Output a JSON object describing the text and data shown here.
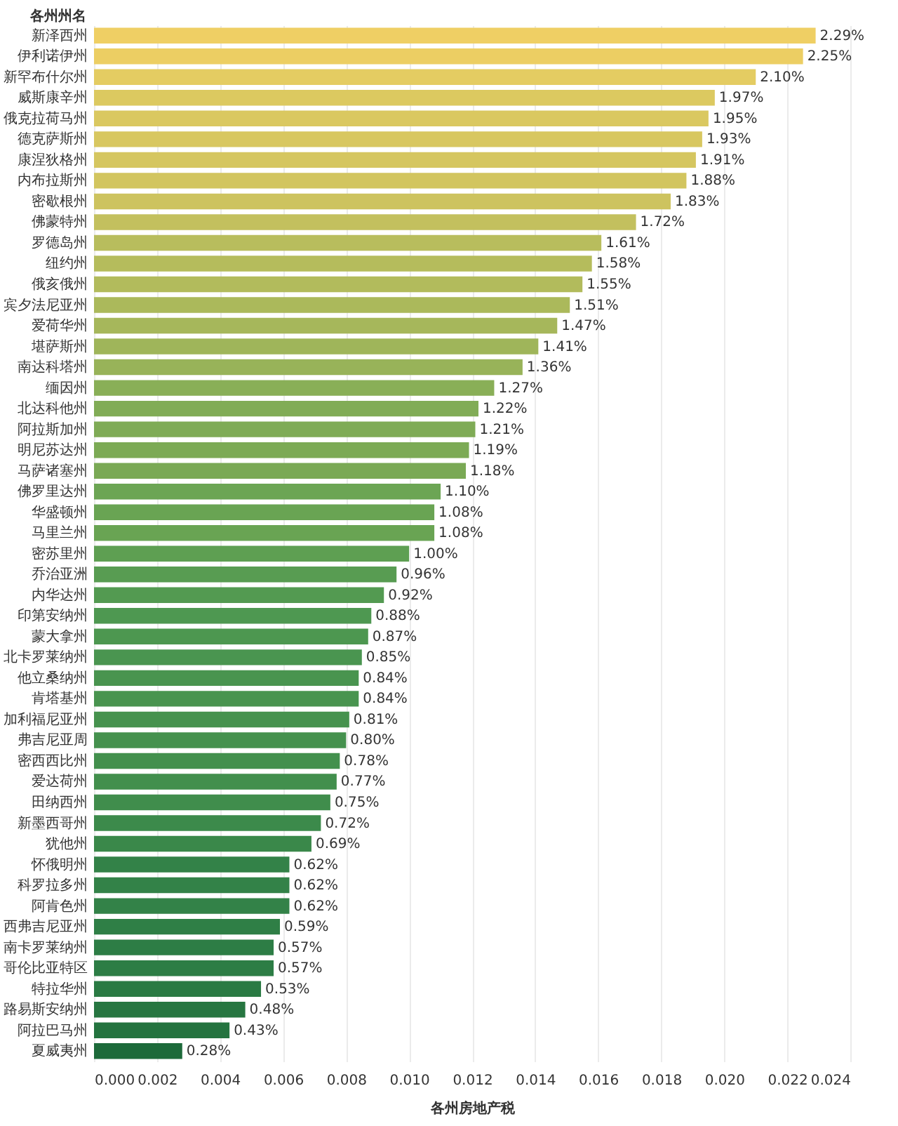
{
  "chart_data": {
    "type": "bar",
    "orientation": "horizontal",
    "xlabel": "各州房地产税",
    "ylabel": "各州州名",
    "categories": [
      "新泽西州",
      "伊利诺伊州",
      "新罕布什尔州",
      "威斯康辛州",
      "俄克拉荷马州",
      "德克萨斯州",
      "康涅狄格州",
      "内布拉斯州",
      "密歇根州",
      "佛蒙特州",
      "罗德岛州",
      "纽约州",
      "俄亥俄州",
      "宾夕法尼亚州",
      "爱荷华州",
      "堪萨斯州",
      "南达科塔州",
      "缅因州",
      "北达科他州",
      "阿拉斯加州",
      "明尼苏达州",
      "马萨诸塞州",
      "佛罗里达州",
      "华盛顿州",
      "马里兰州",
      "密苏里州",
      "乔治亚洲",
      "内华达州",
      "印第安纳州",
      "蒙大拿州",
      "北卡罗莱纳州",
      "他立桑纳州",
      "肯塔基州",
      "加利福尼亚州",
      "弗吉尼亚周",
      "密西西比州",
      "爱达荷州",
      "田纳西州",
      "新墨西哥州",
      "犹他州",
      "怀俄明州",
      "科罗拉多州",
      "阿肯色州",
      "西弗吉尼亚州",
      "南卡罗莱纳州",
      "哥伦比亚特区",
      "特拉华州",
      "路易斯安纳州",
      "阿拉巴马州",
      "夏威夷州"
    ],
    "values": [
      0.0229,
      0.0225,
      0.021,
      0.0197,
      0.0195,
      0.0193,
      0.0191,
      0.0188,
      0.0183,
      0.0172,
      0.0161,
      0.0158,
      0.0155,
      0.0151,
      0.0147,
      0.0141,
      0.0136,
      0.0127,
      0.0122,
      0.0121,
      0.0119,
      0.0118,
      0.011,
      0.0108,
      0.0108,
      0.01,
      0.0096,
      0.0092,
      0.0088,
      0.0087,
      0.0085,
      0.0084,
      0.0084,
      0.0081,
      0.008,
      0.0078,
      0.0077,
      0.0075,
      0.0072,
      0.0069,
      0.0062,
      0.0062,
      0.0062,
      0.0059,
      0.0057,
      0.0057,
      0.0053,
      0.0048,
      0.0043,
      0.0028
    ],
    "value_labels": [
      "2.29%",
      "2.25%",
      "2.10%",
      "1.97%",
      "1.95%",
      "1.93%",
      "1.91%",
      "1.88%",
      "1.83%",
      "1.72%",
      "1.61%",
      "1.58%",
      "1.55%",
      "1.51%",
      "1.47%",
      "1.41%",
      "1.36%",
      "1.27%",
      "1.22%",
      "1.21%",
      "1.19%",
      "1.18%",
      "1.10%",
      "1.08%",
      "1.08%",
      "1.00%",
      "0.96%",
      "0.92%",
      "0.88%",
      "0.87%",
      "0.85%",
      "0.84%",
      "0.84%",
      "0.81%",
      "0.80%",
      "0.78%",
      "0.77%",
      "0.75%",
      "0.72%",
      "0.69%",
      "0.62%",
      "0.62%",
      "0.62%",
      "0.59%",
      "0.57%",
      "0.57%",
      "0.53%",
      "0.48%",
      "0.43%",
      "0.28%"
    ],
    "colors": [
      "#efcf64",
      "#ecce63",
      "#e4cc62",
      "#dcc960",
      "#dac860",
      "#d8c760",
      "#d5c660",
      "#d2c55f",
      "#cdc35f",
      "#c3c05e",
      "#b8bd5d",
      "#b5bc5c",
      "#b2bb5c",
      "#abb95b",
      "#a6b75b",
      "#9fb55a",
      "#98b359",
      "#89af57",
      "#81ac56",
      "#7fab56",
      "#7caa55",
      "#7aa955",
      "#6ca554",
      "#69a453",
      "#69a453",
      "#5e9f52",
      "#589c52",
      "#539a51",
      "#4e9851",
      "#4d9750",
      "#4a9550",
      "#49944f",
      "#49944f",
      "#46924e",
      "#45914e",
      "#43904d",
      "#428f4d",
      "#408d4c",
      "#3c8a4b",
      "#3a884a",
      "#338248",
      "#338248",
      "#338248",
      "#2f7f46",
      "#2d7d45",
      "#2d7d45",
      "#2a7a43",
      "#277641",
      "#24733f",
      "#1d6a3a"
    ],
    "xlim": [
      0,
      0.024
    ],
    "xticks": [
      {
        "value": 0,
        "label": "0.000"
      },
      {
        "value": 0.002,
        "label": "0.002"
      },
      {
        "value": 0.004,
        "label": "0.004"
      },
      {
        "value": 0.006,
        "label": "0.006"
      },
      {
        "value": 0.008,
        "label": "0.008"
      },
      {
        "value": 0.01,
        "label": "0.010"
      },
      {
        "value": 0.012,
        "label": "0.012"
      },
      {
        "value": 0.014,
        "label": "0.014"
      },
      {
        "value": 0.016,
        "label": "0.016"
      },
      {
        "value": 0.018,
        "label": "0.018"
      },
      {
        "value": 0.02,
        "label": "0.020"
      },
      {
        "value": 0.022,
        "label": "0.022"
      },
      {
        "value": 0.024,
        "label": "0.024"
      }
    ],
    "grid": "x"
  }
}
